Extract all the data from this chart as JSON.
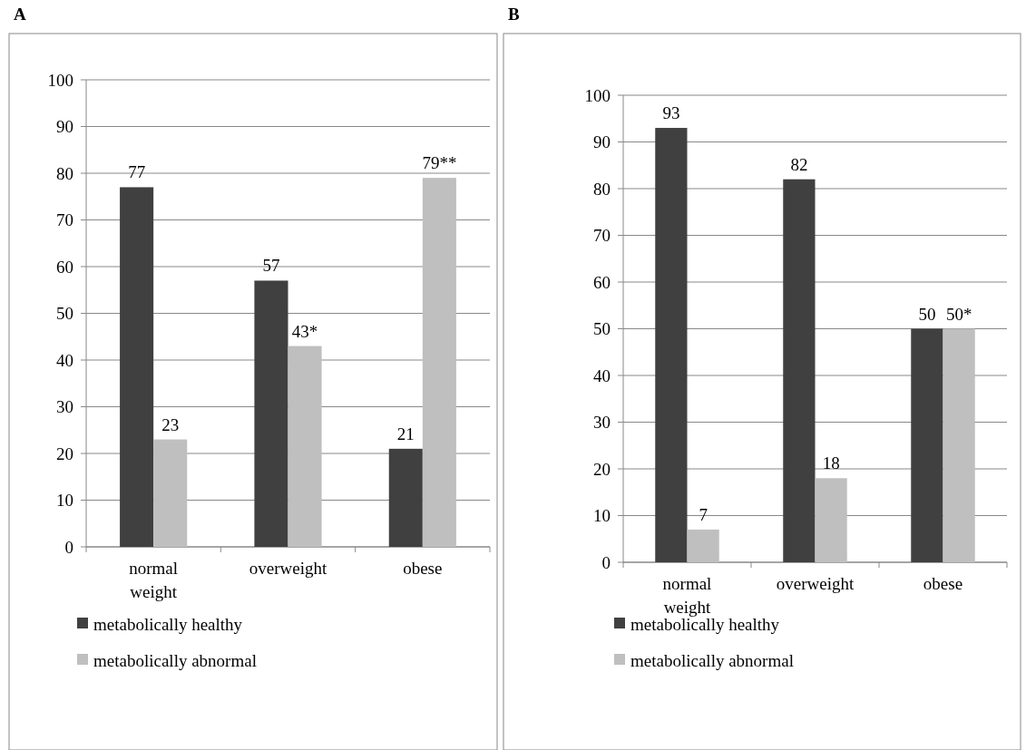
{
  "chart_data": [
    {
      "type": "bar",
      "title": "A",
      "categories": [
        "normal weight",
        "overweight",
        "obese"
      ],
      "ylim": [
        0,
        100
      ],
      "yticks": [
        0,
        10,
        20,
        30,
        40,
        50,
        60,
        70,
        80,
        90,
        100
      ],
      "grid": "y",
      "legend": "bottom",
      "series": [
        {
          "name": "metabolically healthy",
          "color": "#404040",
          "values": [
            77,
            57,
            21
          ],
          "value_labels": [
            "77",
            "57",
            "21"
          ]
        },
        {
          "name": "metabolically abnormal",
          "color": "#bfbfbf",
          "values": [
            23,
            43,
            79
          ],
          "value_labels": [
            "23",
            "43*",
            "79**"
          ]
        }
      ]
    },
    {
      "type": "bar",
      "title": "B",
      "categories": [
        "normal weight",
        "overweight",
        "obese"
      ],
      "ylim": [
        0,
        100
      ],
      "yticks": [
        0,
        10,
        20,
        30,
        40,
        50,
        60,
        70,
        80,
        90,
        100
      ],
      "grid": "y",
      "legend": "bottom",
      "series": [
        {
          "name": "metabolically healthy",
          "color": "#404040",
          "values": [
            93,
            82,
            50
          ],
          "value_labels": [
            "93",
            "82",
            "50"
          ]
        },
        {
          "name": "metabolically abnormal",
          "color": "#bfbfbf",
          "values": [
            7,
            18,
            50
          ],
          "value_labels": [
            "7",
            "18",
            "50*"
          ]
        }
      ]
    }
  ]
}
